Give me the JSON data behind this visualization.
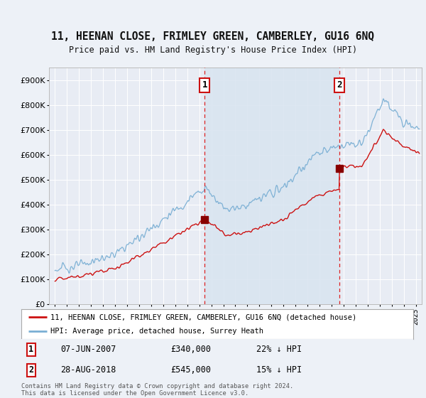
{
  "title": "11, HEENAN CLOSE, FRIMLEY GREEN, CAMBERLEY, GU16 6NQ",
  "subtitle": "Price paid vs. HM Land Registry's House Price Index (HPI)",
  "background_color": "#edf1f7",
  "plot_bg_color": "#e8ecf4",
  "shade_color": "#d8e4f0",
  "grid_color": "#ffffff",
  "red_line_label": "11, HEENAN CLOSE, FRIMLEY GREEN, CAMBERLEY, GU16 6NQ (detached house)",
  "blue_line_label": "HPI: Average price, detached house, Surrey Heath",
  "annotation1": {
    "num": "1",
    "date": "07-JUN-2007",
    "price": "£340,000",
    "pct": "22% ↓ HPI",
    "x_year": 2007.44,
    "y_val": 340000
  },
  "annotation2": {
    "num": "2",
    "date": "28-AUG-2018",
    "price": "£545,000",
    "pct": "15% ↓ HPI",
    "x_year": 2018.65,
    "y_val": 545000
  },
  "footer": "Contains HM Land Registry data © Crown copyright and database right 2024.\nThis data is licensed under the Open Government Licence v3.0.",
  "ylim": [
    0,
    950000
  ],
  "yticks": [
    0,
    100000,
    200000,
    300000,
    400000,
    500000,
    600000,
    700000,
    800000,
    900000
  ],
  "ytick_labels": [
    "£0",
    "£100K",
    "£200K",
    "£300K",
    "£400K",
    "£500K",
    "£600K",
    "£700K",
    "£800K",
    "£900K"
  ],
  "xlim_start": 1994.5,
  "xlim_end": 2025.5,
  "hpi_base": 140000,
  "red_base": 100000,
  "sale1_year": 2007.44,
  "sale1_price": 340000,
  "sale2_year": 2018.65,
  "sale2_price": 545000
}
